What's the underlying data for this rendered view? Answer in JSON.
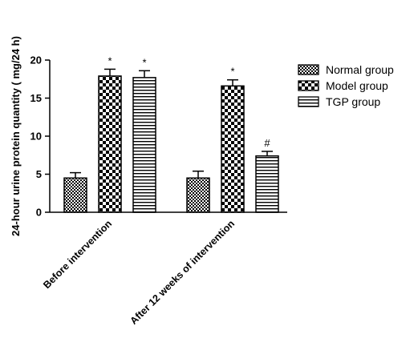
{
  "chart_data": {
    "type": "bar",
    "ylabel": "24-hour urine protein quantity ( mg/24 h)",
    "ylim": [
      0,
      20
    ],
    "yticks": [
      0,
      5,
      10,
      15,
      20
    ],
    "categories": [
      "Before intervention",
      "After 12 weeks of intervention"
    ],
    "series": [
      {
        "name": "Normal group",
        "values": [
          4.5,
          4.5
        ],
        "errors": [
          0.7,
          0.9
        ],
        "annotations": [
          "",
          ""
        ],
        "pattern": "fine-checker",
        "color": "#000000"
      },
      {
        "name": "Model group",
        "values": [
          17.9,
          16.6
        ],
        "errors": [
          0.9,
          0.8
        ],
        "annotations": [
          "*",
          "*"
        ],
        "pattern": "coarse-checker",
        "color": "#000000"
      },
      {
        "name": "TGP group",
        "values": [
          17.7,
          7.4
        ],
        "errors": [
          0.9,
          0.6
        ],
        "annotations": [
          "*",
          "#"
        ],
        "pattern": "horizontal-stripes",
        "color": "#000000"
      }
    ],
    "legend_position": "right"
  }
}
